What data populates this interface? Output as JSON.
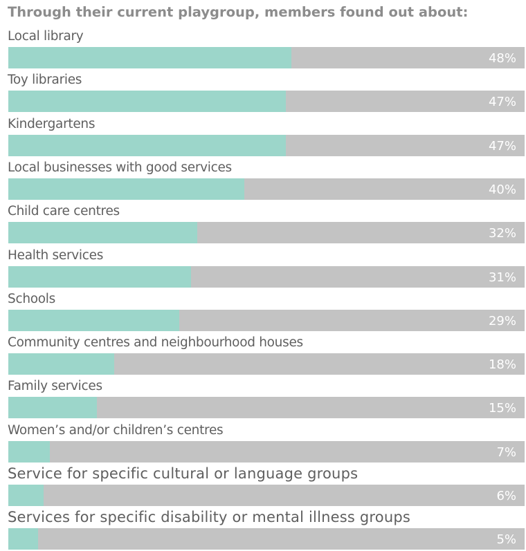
{
  "chart_data": {
    "type": "bar",
    "orientation": "horizontal",
    "title": "Through their current playgroup, members found out about:",
    "xlim": [
      0,
      100
    ],
    "unit": "%",
    "grid": false,
    "legend": "none",
    "colors": {
      "fill": "#9cd6ca",
      "track": "#c3c3c3",
      "value_label": "#ffffff",
      "category_label": "#5f5f5f",
      "title": "#8c8c8c"
    },
    "categories": [
      "Local library",
      "Toy libraries",
      "Kindergartens",
      "Local businesses with good services",
      "Child care centres",
      "Health services",
      "Schools",
      "Community centres and neighbourhood houses",
      "Family services",
      "Women’s and/or children’s centres",
      "Service for specific cultural or language groups",
      "Services for specific disability or mental illness groups"
    ],
    "values": [
      48,
      47,
      47,
      40,
      32,
      31,
      29,
      18,
      15,
      7,
      6,
      5
    ],
    "value_labels": [
      "48%",
      "47%",
      "47%",
      "40%",
      "32%",
      "31%",
      "29%",
      "18%",
      "15%",
      "7%",
      "6%",
      "5%"
    ]
  }
}
